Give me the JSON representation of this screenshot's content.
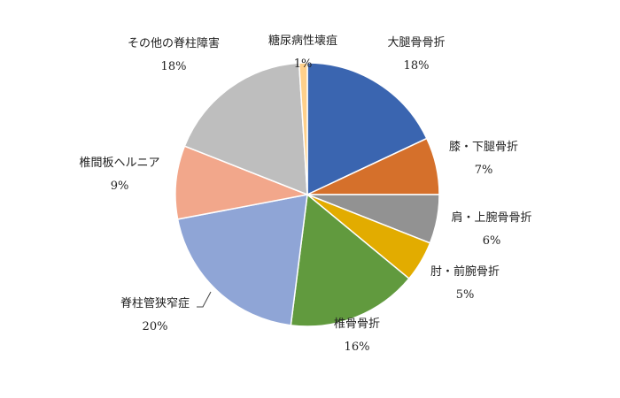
{
  "chart_data": {
    "type": "pie",
    "title": "",
    "start_angle_deg": 0,
    "direction": "clockwise",
    "legend": "none",
    "slices": [
      {
        "label": "大腿骨骨折",
        "value": 18,
        "display": "18%",
        "color": "#3A65B0"
      },
      {
        "label": "膝・下腿骨折",
        "value": 7,
        "display": "7%",
        "color": "#D5702B"
      },
      {
        "label": "肩・上腕骨骨折",
        "value": 6,
        "display": "6%",
        "color": "#929292"
      },
      {
        "label": "肘・前腕骨折",
        "value": 5,
        "display": "5%",
        "color": "#E2AC00"
      },
      {
        "label": "椎骨骨折",
        "value": 16,
        "display": "16%",
        "color": "#619A3E"
      },
      {
        "label": "脊柱管狭窄症",
        "value": 20,
        "display": "20%",
        "color": "#8FA5D6"
      },
      {
        "label": "椎間板ヘルニア",
        "value": 9,
        "display": "9%",
        "color": "#F2A78B"
      },
      {
        "label": "その他の脊柱障害",
        "value": 18,
        "display": "18%",
        "color": "#BEBEBE"
      },
      {
        "label": "糖尿病性壊疽",
        "value": 1,
        "display": "1%",
        "color": "#FFD08A"
      }
    ]
  }
}
